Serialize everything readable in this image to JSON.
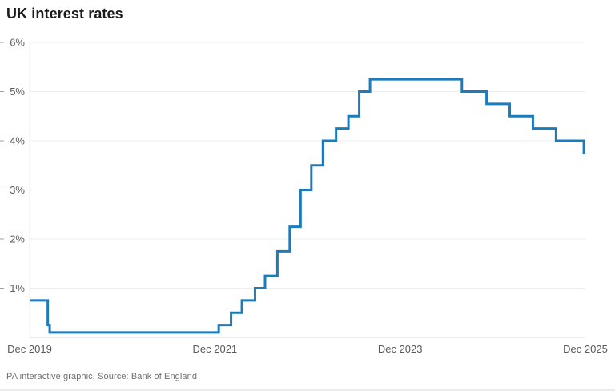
{
  "title": "UK interest rates",
  "footer": {
    "source_line": "PA interactive graphic. Source: Bank of England"
  },
  "colors": {
    "line": "#1a7cbd",
    "grid": "#ededed",
    "axis_line": "#dcdcdc",
    "plot_border": "#ededed",
    "tick": "#9f9f9f",
    "axis_label": "#595959",
    "title_text": "#1c1c1c",
    "source_text": "#6f6f6f",
    "background": "#ffffff"
  },
  "chart_data": {
    "type": "line",
    "subtype": "step",
    "title": "UK interest rates",
    "xlabel": "",
    "ylabel": "",
    "unit": "%",
    "grid": "horizontal-only",
    "legend": "none",
    "xlim_months": [
      0,
      72
    ],
    "ylim": [
      0,
      6
    ],
    "x_tick_labels": [
      "Dec 2019",
      "Dec 2021",
      "Dec 2023",
      "Dec 2025"
    ],
    "x_tick_months": [
      0,
      24,
      48,
      72
    ],
    "y_ticks": [
      1,
      2,
      3,
      4,
      5,
      6
    ],
    "y_tick_labels": [
      "1%",
      "2%",
      "3%",
      "4%",
      "5%",
      "6%"
    ],
    "end_month": 72,
    "points": [
      {
        "date": "Dec 2019",
        "month": 0,
        "rate": 0.75
      },
      {
        "date": "Mar 2020",
        "month": 2.35,
        "rate": 0.25
      },
      {
        "date": "Mar 2020",
        "month": 2.6,
        "rate": 0.1
      },
      {
        "date": "Dec 2021",
        "month": 24.5,
        "rate": 0.25
      },
      {
        "date": "Feb 2022",
        "month": 26.1,
        "rate": 0.5
      },
      {
        "date": "Mar 2022",
        "month": 27.5,
        "rate": 0.75
      },
      {
        "date": "May 2022",
        "month": 29.2,
        "rate": 1.0
      },
      {
        "date": "Jun 2022",
        "month": 30.5,
        "rate": 1.25
      },
      {
        "date": "Aug 2022",
        "month": 32.1,
        "rate": 1.75
      },
      {
        "date": "Sep 2022",
        "month": 33.7,
        "rate": 2.25
      },
      {
        "date": "Nov 2022",
        "month": 35.1,
        "rate": 3.0
      },
      {
        "date": "Dec 2022",
        "month": 36.5,
        "rate": 3.5
      },
      {
        "date": "Feb 2023",
        "month": 38.0,
        "rate": 4.0
      },
      {
        "date": "Mar 2023",
        "month": 39.7,
        "rate": 4.25
      },
      {
        "date": "May 2023",
        "month": 41.3,
        "rate": 4.5
      },
      {
        "date": "Jun 2023",
        "month": 42.7,
        "rate": 5.0
      },
      {
        "date": "Aug 2023",
        "month": 44.1,
        "rate": 5.25
      },
      {
        "date": "Aug 2024",
        "month": 56.0,
        "rate": 5.0
      },
      {
        "date": "Nov 2024",
        "month": 59.2,
        "rate": 4.75
      },
      {
        "date": "Feb 2025",
        "month": 62.2,
        "rate": 4.5
      },
      {
        "date": "May 2025",
        "month": 65.2,
        "rate": 4.25
      },
      {
        "date": "Aug 2025",
        "month": 68.2,
        "rate": 4.0
      },
      {
        "date": "Nov 2025",
        "month": 71.8,
        "rate": 3.75
      }
    ]
  }
}
